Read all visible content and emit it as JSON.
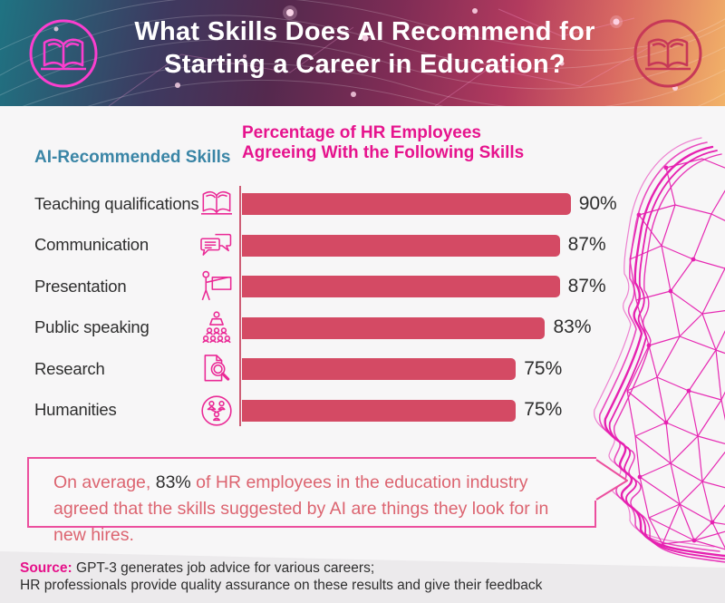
{
  "header": {
    "title_line1": "What Skills Does AI Recommend for",
    "title_line2": "Starting a Career in Education?",
    "left_icon": "open-book-icon",
    "right_icon": "open-book-icon"
  },
  "columns": {
    "skills_header": "AI-Recommended Skills",
    "percent_header_line1": "Percentage of HR Employees",
    "percent_header_line2": "Agreeing With the Following Skills"
  },
  "chart_data": {
    "type": "bar",
    "orientation": "horizontal",
    "title": "What Skills Does AI Recommend for Starting a Career in Education?",
    "xlabel": "Percentage of HR Employees Agreeing With the Following Skills",
    "ylabel": "AI-Recommended Skills",
    "categories": [
      "Teaching qualifications",
      "Communication",
      "Presentation",
      "Public speaking",
      "Research",
      "Humanities"
    ],
    "values": [
      90,
      87,
      87,
      83,
      75,
      75
    ],
    "value_labels": [
      "90%",
      "87%",
      "87%",
      "83%",
      "75%",
      "75%"
    ],
    "icons": [
      "open-book-icon",
      "chat-bubbles-icon",
      "presenter-board-icon",
      "speaker-audience-icon",
      "document-magnifier-icon",
      "people-network-icon"
    ],
    "xlim": [
      0,
      100
    ],
    "grid": false,
    "legend": false,
    "bar_color": "#D44A64"
  },
  "callout": {
    "prefix": "On average, ",
    "stat": "83%",
    "rest": " of HR employees in the education industry agreed that the skills suggested by AI are things they look for in new hires."
  },
  "footer": {
    "source_label": "Source:",
    "line1": " GPT-3 generates job advice for various careers;",
    "line2": "HR professionals provide quality assurance on these results and give their feedback"
  },
  "colors": {
    "bar": "#D44A64",
    "axis": "#CE5E76",
    "skills_header": "#3A85A6",
    "percent_header": "#E6138D",
    "icon_magenta": "#EA2A96",
    "face_magenta": "#E620B0",
    "callout_border": "#EC4F9E",
    "callout_text": "#DC6470",
    "source_label": "#E6118A",
    "header_gradient": [
      "#1F7382",
      "#54294E",
      "#B23A5E",
      "#F2B368"
    ]
  }
}
